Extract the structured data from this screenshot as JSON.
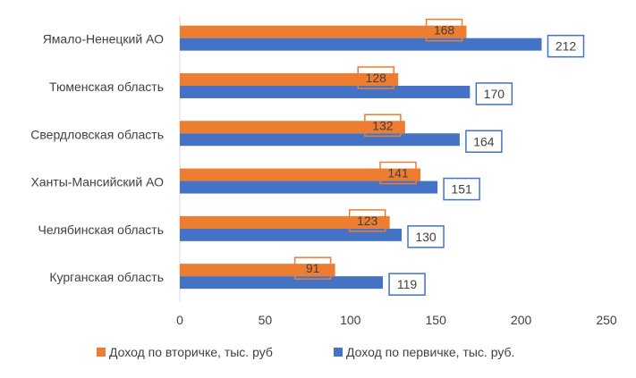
{
  "chart_data": {
    "type": "bar",
    "orientation": "horizontal",
    "title": "",
    "xlabel": "",
    "ylabel": "",
    "categories": [
      "Ямало-Ненецкий АО",
      "Тюменская область",
      "Свердловская область",
      "Ханты-Мансийский АО",
      "Челябинская область",
      "Курганская область"
    ],
    "series": [
      {
        "name": "Доход по вторичке, тыс. руб",
        "color": "#ED7D31",
        "values": [
          168,
          128,
          132,
          141,
          123,
          91
        ]
      },
      {
        "name": "Доход по первичке, тыс. руб.",
        "color": "#4472C4",
        "values": [
          212,
          170,
          164,
          151,
          130,
          119
        ]
      }
    ],
    "xlim": [
      0,
      250
    ],
    "xticks": [
      "0",
      "50",
      "100",
      "150",
      "200",
      "250"
    ],
    "grid": false,
    "legend": "bottom",
    "data_labels": true
  }
}
